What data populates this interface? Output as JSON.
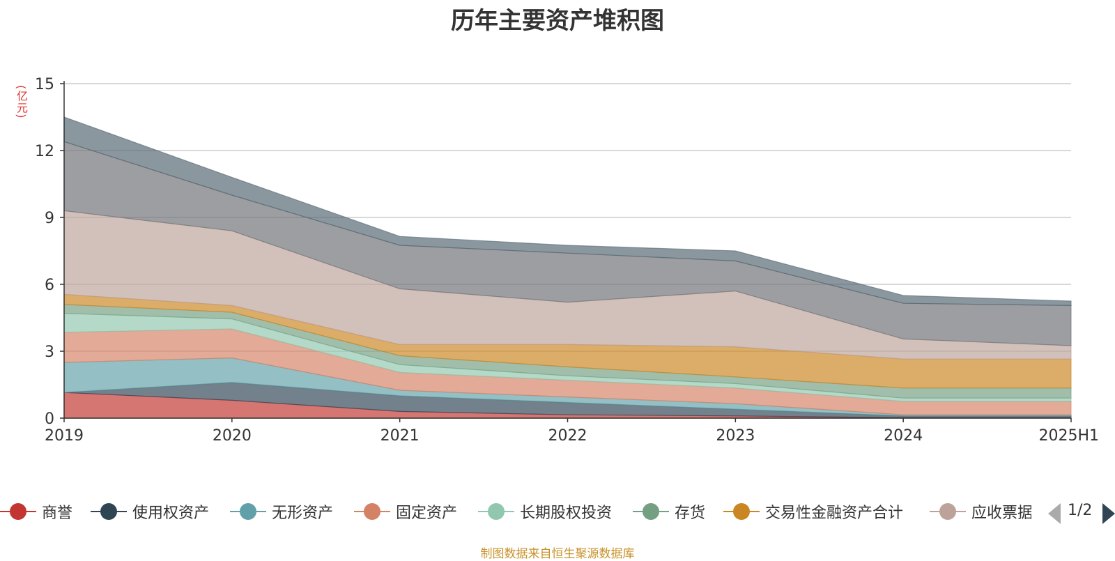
{
  "title": "历年主要资产堆积图",
  "unit": "(亿元)",
  "source": "制图数据来自恒生聚源数据库",
  "pager": "1/2",
  "chart_data": {
    "type": "area",
    "stacked": true,
    "categories": [
      "2019",
      "2020",
      "2021",
      "2022",
      "2023",
      "2024",
      "2025H1"
    ],
    "ylim": [
      0,
      15
    ],
    "yticks": [
      "0",
      "3",
      "6",
      "9",
      "12",
      "15"
    ],
    "grid": true,
    "series": [
      {
        "name": "商誉",
        "color": "#c23531",
        "values": [
          1.15,
          0.8,
          0.3,
          0.15,
          0.1,
          0.02,
          0.02
        ]
      },
      {
        "name": "使用权资产",
        "color": "#2f4554",
        "values": [
          0.0,
          0.8,
          0.7,
          0.55,
          0.3,
          0.08,
          0.08
        ]
      },
      {
        "name": "无形资产",
        "color": "#61a0a8",
        "values": [
          1.35,
          1.1,
          0.25,
          0.25,
          0.25,
          0.05,
          0.05
        ]
      },
      {
        "name": "固定资产",
        "color": "#d48265",
        "values": [
          1.35,
          1.3,
          0.8,
          0.75,
          0.7,
          0.6,
          0.6
        ]
      },
      {
        "name": "长期股权投资",
        "color": "#91c7ae",
        "values": [
          0.85,
          0.45,
          0.35,
          0.2,
          0.2,
          0.15,
          0.15
        ]
      },
      {
        "name": "存货",
        "color": "#749f83",
        "values": [
          0.4,
          0.3,
          0.4,
          0.4,
          0.3,
          0.45,
          0.45
        ]
      },
      {
        "name": "交易性金融资产合计",
        "color": "#ca8622",
        "values": [
          0.45,
          0.3,
          0.5,
          1.0,
          1.35,
          1.3,
          1.3
        ]
      },
      {
        "name": "应收票据",
        "color": "#bda29a",
        "values": [
          3.75,
          3.35,
          2.5,
          1.9,
          2.5,
          0.9,
          0.6
        ]
      },
      {
        "name": "",
        "color": "#6e7074",
        "values": [
          3.1,
          1.6,
          1.95,
          2.2,
          1.35,
          1.6,
          1.8
        ]
      },
      {
        "name": "",
        "color": "#546570",
        "values": [
          1.1,
          0.8,
          0.4,
          0.35,
          0.45,
          0.35,
          0.2
        ]
      }
    ]
  }
}
